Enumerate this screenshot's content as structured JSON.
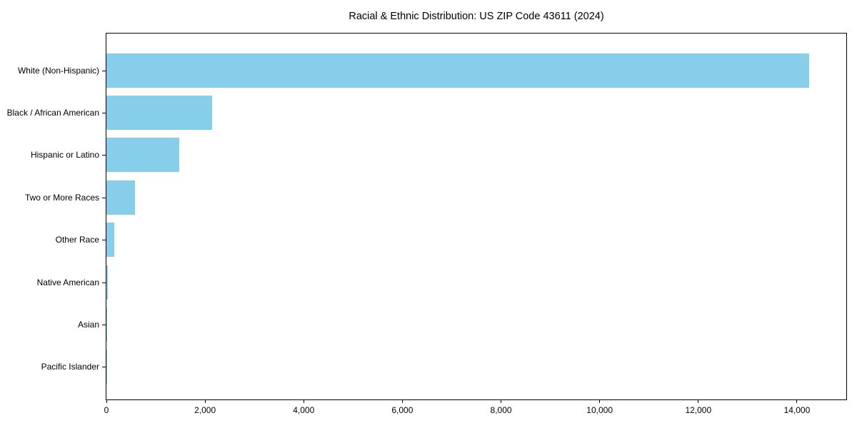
{
  "chart_data": {
    "type": "bar",
    "orientation": "horizontal",
    "title": "Racial & Ethnic Distribution: US ZIP Code 43611 (2024)",
    "categories": [
      "White (Non-Hispanic)",
      "Black / African American",
      "Hispanic or Latino",
      "Two or More Races",
      "Other Race",
      "Native American",
      "Asian",
      "Pacific Islander"
    ],
    "values": [
      14240,
      2140,
      1480,
      585,
      155,
      28,
      10,
      5
    ],
    "xlabel": "",
    "ylabel": "",
    "xlim": [
      0,
      15000
    ],
    "xticks": [
      0,
      2000,
      4000,
      6000,
      8000,
      10000,
      12000,
      14000
    ],
    "xtick_labels": [
      "0",
      "2,000",
      "4,000",
      "6,000",
      "8,000",
      "10,000",
      "12,000",
      "14,000"
    ],
    "bar_color": "#87ceeb",
    "axis_color": "#000000",
    "background_color": "#ffffff",
    "grid": false,
    "legend": null
  }
}
